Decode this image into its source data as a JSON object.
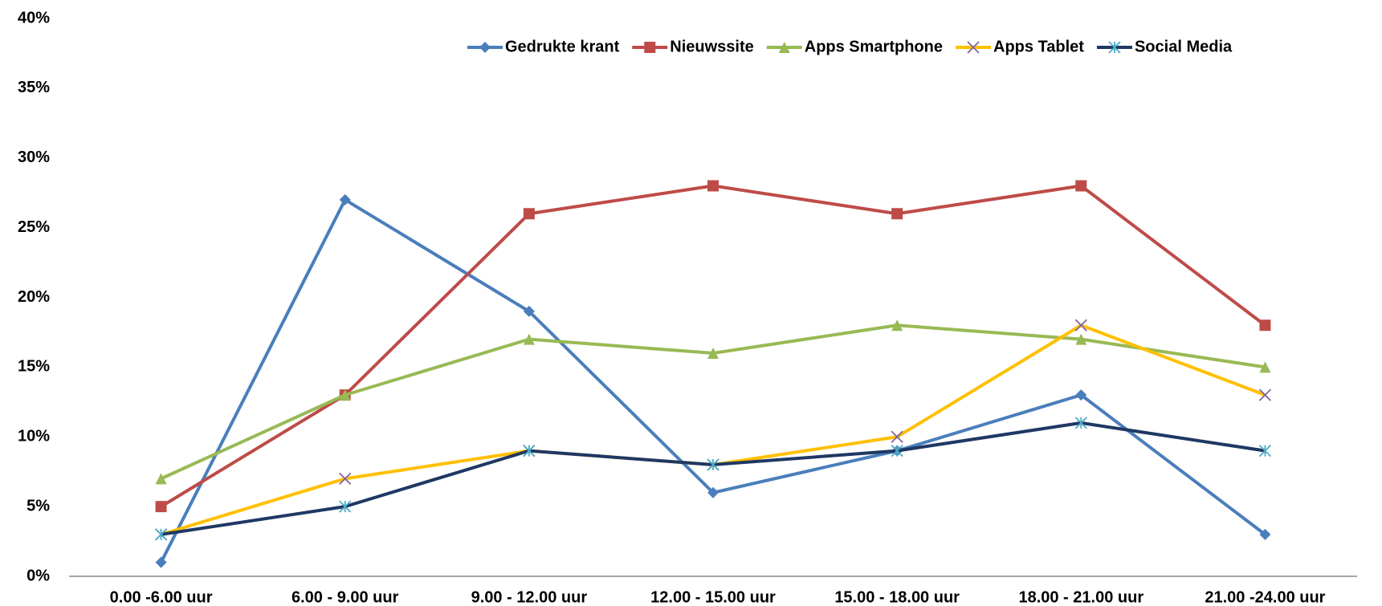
{
  "chart_data": {
    "type": "line",
    "categories": [
      "0.00 -6.00 uur",
      "6.00 - 9.00 uur",
      "9.00 - 12.00 uur",
      "12.00 - 15.00 uur",
      "15.00 - 18.00 uur",
      "18.00 - 21.00 uur",
      "21.00 -24.00 uur"
    ],
    "series": [
      {
        "name": "Gedrukte krant",
        "color": "#4a7ebb",
        "marker": "diamond",
        "marker_color": "#4a7ebb",
        "values": [
          1,
          27,
          19,
          6,
          9,
          13,
          3
        ]
      },
      {
        "name": "Nieuwssite",
        "color": "#be4b48",
        "marker": "square",
        "marker_color": "#be4b48",
        "values": [
          5,
          13,
          26,
          28,
          26,
          28,
          18
        ]
      },
      {
        "name": "Apps Smartphone",
        "color": "#98b954",
        "marker": "triangle",
        "marker_color": "#98b954",
        "values": [
          7,
          13,
          17,
          16,
          18,
          17,
          15
        ]
      },
      {
        "name": "Apps Tablet",
        "color": "#ffc000",
        "marker": "x",
        "marker_color": "#8064a2",
        "values": [
          3,
          7,
          9,
          8,
          10,
          18,
          13
        ]
      },
      {
        "name": "Social Media",
        "color": "#1f3864",
        "marker": "star",
        "marker_color": "#4bacc6",
        "values": [
          3,
          5,
          9,
          8,
          9,
          11,
          9
        ]
      }
    ],
    "ylim": [
      0,
      40
    ],
    "yticks": [
      {
        "value": 0,
        "label": "0%"
      },
      {
        "value": 5,
        "label": "5%"
      },
      {
        "value": 10,
        "label": "10%"
      },
      {
        "value": 15,
        "label": "15%"
      },
      {
        "value": 20,
        "label": "20%"
      },
      {
        "value": 25,
        "label": "25%"
      },
      {
        "value": 30,
        "label": "30%"
      },
      {
        "value": 35,
        "label": "35%"
      },
      {
        "value": 40,
        "label": "40%"
      }
    ],
    "grid": false,
    "legend": "top"
  }
}
